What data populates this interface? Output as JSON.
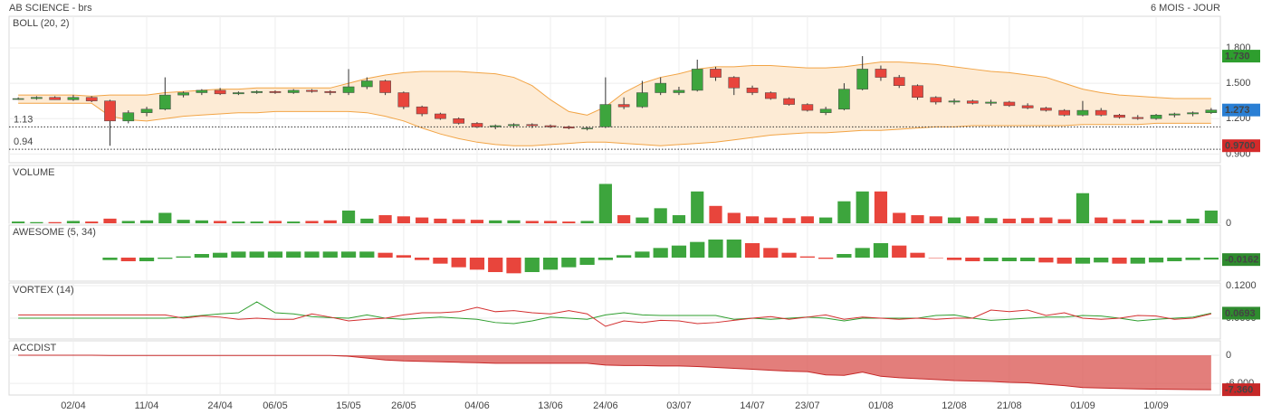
{
  "header": {
    "title": "AB SCIENCE - brs",
    "period": "6 MOIS - JOUR"
  },
  "chart_data": [
    {
      "type": "candlestick",
      "title": "BOLL (20, 2)",
      "title_color": "#f0a040",
      "ylim": [
        0.826,
        2.068
      ],
      "yticks": [
        {
          "value": 0.9,
          "label": "0.900"
        },
        {
          "value": 1.2,
          "label": "1.200"
        },
        {
          "value": 1.5,
          "label": "1.500"
        },
        {
          "value": 1.8,
          "label": "1.800"
        }
      ],
      "grid": true,
      "up_color": "#3da53d",
      "down_color": "#e8453c",
      "band_color": "#f2a445",
      "band_fill": "#fdebd5",
      "ohlc": [
        [
          1.37,
          1.38,
          1.36,
          1.37
        ],
        [
          1.37,
          1.39,
          1.36,
          1.38
        ],
        [
          1.38,
          1.39,
          1.36,
          1.36
        ],
        [
          1.36,
          1.4,
          1.35,
          1.38
        ],
        [
          1.38,
          1.39,
          1.34,
          1.35
        ],
        [
          1.35,
          1.36,
          0.97,
          1.18
        ],
        [
          1.18,
          1.27,
          1.16,
          1.25
        ],
        [
          1.25,
          1.3,
          1.22,
          1.28
        ],
        [
          1.28,
          1.55,
          1.27,
          1.4
        ],
        [
          1.4,
          1.43,
          1.38,
          1.42
        ],
        [
          1.42,
          1.45,
          1.4,
          1.44
        ],
        [
          1.44,
          1.46,
          1.4,
          1.41
        ],
        [
          1.41,
          1.43,
          1.4,
          1.42
        ],
        [
          1.42,
          1.44,
          1.41,
          1.43
        ],
        [
          1.43,
          1.44,
          1.41,
          1.42
        ],
        [
          1.42,
          1.45,
          1.41,
          1.44
        ],
        [
          1.44,
          1.45,
          1.42,
          1.43
        ],
        [
          1.43,
          1.44,
          1.4,
          1.42
        ],
        [
          1.42,
          1.62,
          1.4,
          1.47
        ],
        [
          1.47,
          1.55,
          1.45,
          1.52
        ],
        [
          1.52,
          1.53,
          1.4,
          1.42
        ],
        [
          1.42,
          1.43,
          1.28,
          1.3
        ],
        [
          1.3,
          1.31,
          1.22,
          1.24
        ],
        [
          1.24,
          1.25,
          1.19,
          1.2
        ],
        [
          1.2,
          1.21,
          1.15,
          1.16
        ],
        [
          1.16,
          1.17,
          1.12,
          1.13
        ],
        [
          1.13,
          1.15,
          1.11,
          1.14
        ],
        [
          1.14,
          1.16,
          1.12,
          1.15
        ],
        [
          1.15,
          1.16,
          1.12,
          1.14
        ],
        [
          1.14,
          1.15,
          1.12,
          1.13
        ],
        [
          1.13,
          1.14,
          1.11,
          1.12
        ],
        [
          1.12,
          1.13,
          1.1,
          1.12
        ],
        [
          1.13,
          1.55,
          1.12,
          1.32
        ],
        [
          1.32,
          1.38,
          1.28,
          1.3
        ],
        [
          1.3,
          1.52,
          1.29,
          1.42
        ],
        [
          1.42,
          1.55,
          1.4,
          1.5
        ],
        [
          1.42,
          1.47,
          1.4,
          1.44
        ],
        [
          1.44,
          1.7,
          1.43,
          1.62
        ],
        [
          1.62,
          1.64,
          1.52,
          1.55
        ],
        [
          1.55,
          1.56,
          1.4,
          1.46
        ],
        [
          1.46,
          1.48,
          1.4,
          1.42
        ],
        [
          1.42,
          1.43,
          1.36,
          1.37
        ],
        [
          1.37,
          1.38,
          1.31,
          1.32
        ],
        [
          1.32,
          1.33,
          1.26,
          1.27
        ],
        [
          1.25,
          1.3,
          1.23,
          1.28
        ],
        [
          1.28,
          1.5,
          1.27,
          1.45
        ],
        [
          1.45,
          1.73,
          1.44,
          1.62
        ],
        [
          1.62,
          1.65,
          1.52,
          1.55
        ],
        [
          1.55,
          1.57,
          1.46,
          1.48
        ],
        [
          1.48,
          1.49,
          1.36,
          1.38
        ],
        [
          1.38,
          1.39,
          1.32,
          1.34
        ],
        [
          1.34,
          1.37,
          1.32,
          1.35
        ],
        [
          1.35,
          1.36,
          1.32,
          1.33
        ],
        [
          1.33,
          1.36,
          1.31,
          1.34
        ],
        [
          1.34,
          1.35,
          1.3,
          1.31
        ],
        [
          1.31,
          1.33,
          1.28,
          1.29
        ],
        [
          1.29,
          1.3,
          1.26,
          1.27
        ],
        [
          1.27,
          1.28,
          1.22,
          1.23
        ],
        [
          1.23,
          1.35,
          1.22,
          1.27
        ],
        [
          1.27,
          1.29,
          1.22,
          1.23
        ],
        [
          1.23,
          1.24,
          1.2,
          1.21
        ],
        [
          1.21,
          1.23,
          1.19,
          1.2
        ],
        [
          1.2,
          1.24,
          1.19,
          1.23
        ],
        [
          1.23,
          1.25,
          1.21,
          1.24
        ],
        [
          1.24,
          1.26,
          1.22,
          1.25
        ],
        [
          1.25,
          1.29,
          1.24,
          1.273
        ]
      ],
      "upper": [
        1.4,
        1.4,
        1.4,
        1.4,
        1.39,
        1.4,
        1.4,
        1.4,
        1.42,
        1.43,
        1.44,
        1.45,
        1.45,
        1.46,
        1.46,
        1.46,
        1.46,
        1.46,
        1.5,
        1.54,
        1.57,
        1.59,
        1.6,
        1.6,
        1.6,
        1.59,
        1.58,
        1.55,
        1.48,
        1.36,
        1.26,
        1.23,
        1.3,
        1.42,
        1.5,
        1.55,
        1.58,
        1.62,
        1.64,
        1.64,
        1.65,
        1.65,
        1.64,
        1.63,
        1.63,
        1.64,
        1.66,
        1.68,
        1.68,
        1.67,
        1.66,
        1.64,
        1.62,
        1.6,
        1.59,
        1.57,
        1.55,
        1.5,
        1.45,
        1.42,
        1.4,
        1.39,
        1.38,
        1.37,
        1.37,
        1.37
      ],
      "lower": [
        1.33,
        1.33,
        1.33,
        1.33,
        1.33,
        1.22,
        1.19,
        1.18,
        1.2,
        1.22,
        1.23,
        1.24,
        1.25,
        1.25,
        1.26,
        1.26,
        1.26,
        1.26,
        1.26,
        1.25,
        1.22,
        1.18,
        1.12,
        1.07,
        1.03,
        1.0,
        0.98,
        0.97,
        0.97,
        0.98,
        0.99,
        1.0,
        1.0,
        0.99,
        0.98,
        0.97,
        0.98,
        0.99,
        1.0,
        1.02,
        1.04,
        1.06,
        1.07,
        1.08,
        1.08,
        1.09,
        1.1,
        1.1,
        1.11,
        1.12,
        1.13,
        1.13,
        1.14,
        1.14,
        1.14,
        1.14,
        1.14,
        1.14,
        1.15,
        1.15,
        1.15,
        1.15,
        1.16,
        1.16,
        1.16,
        1.16
      ],
      "levels": [
        1.13,
        0.94
      ],
      "markers": [
        {
          "value": 1.73,
          "label": "1.730",
          "color": "#2e9e2e"
        },
        {
          "value": 1.273,
          "label": "1.273",
          "color": "#2a7fd4"
        },
        {
          "value": 0.97,
          "label": "0.9700",
          "color": "#d42a2a"
        }
      ]
    },
    {
      "type": "volume",
      "title": "VOLUME",
      "title_color": "#3da53d",
      "ylim": [
        0,
        100
      ],
      "yticks": [
        0
      ],
      "values": [
        3,
        2,
        2,
        4,
        3,
        8,
        4,
        5,
        18,
        6,
        5,
        4,
        3,
        3,
        4,
        3,
        4,
        5,
        22,
        8,
        14,
        12,
        10,
        8,
        7,
        6,
        5,
        5,
        4,
        4,
        3,
        4,
        68,
        14,
        10,
        26,
        14,
        55,
        30,
        18,
        12,
        10,
        9,
        12,
        10,
        38,
        55,
        55,
        18,
        14,
        12,
        10,
        12,
        9,
        8,
        9,
        10,
        7,
        52,
        10,
        7,
        6,
        5,
        6,
        8,
        22
      ]
    },
    {
      "type": "oscillator",
      "title": "AWESOME (5, 34)",
      "title_color": "#3a8a3a",
      "ylim": [
        -0.195,
        0.27
      ],
      "marker_color": "#2e8b2e",
      "values": [
        null,
        null,
        null,
        null,
        null,
        -0.02,
        -0.03,
        -0.03,
        -0.01,
        0.01,
        0.03,
        0.04,
        0.05,
        0.05,
        0.05,
        0.05,
        0.05,
        0.05,
        0.05,
        0.05,
        0.04,
        0.02,
        -0.02,
        -0.05,
        -0.08,
        -0.1,
        -0.12,
        -0.13,
        -0.12,
        -0.1,
        -0.08,
        -0.06,
        -0.02,
        0.02,
        0.05,
        0.08,
        0.1,
        0.13,
        0.15,
        0.15,
        0.12,
        0.08,
        0.04,
        0.01,
        -0.01,
        0.03,
        0.08,
        0.12,
        0.1,
        0.04,
        0,
        -0.02,
        -0.03,
        -0.03,
        -0.03,
        -0.03,
        -0.04,
        -0.05,
        -0.05,
        -0.04,
        -0.05,
        -0.05,
        -0.04,
        -0.03,
        -0.02,
        -0.0162
      ]
    },
    {
      "type": "line",
      "title": "VORTEX (14)",
      "title_color": "#2e7d32",
      "ylim": [
        0.0217,
        0.125
      ],
      "yticks": [
        {
          "value": 0.12,
          "label": "0.1200"
        },
        {
          "value": 0.06,
          "label": "0.0600"
        }
      ],
      "marker_color": "#2e8b2e",
      "series": [
        {
          "color": "#2e9e2e",
          "values": [
            0.06,
            0.06,
            0.06,
            0.06,
            0.06,
            0.06,
            0.06,
            0.06,
            0.06,
            0.062,
            0.065,
            0.068,
            0.07,
            0.09,
            0.07,
            0.068,
            0.063,
            0.061,
            0.06,
            0.066,
            0.06,
            0.058,
            0.06,
            0.062,
            0.06,
            0.058,
            0.052,
            0.05,
            0.055,
            0.062,
            0.06,
            0.058,
            0.066,
            0.07,
            0.066,
            0.065,
            0.065,
            0.065,
            0.065,
            0.058,
            0.06,
            0.058,
            0.06,
            0.062,
            0.06,
            0.055,
            0.06,
            0.06,
            0.06,
            0.06,
            0.065,
            0.066,
            0.06,
            0.056,
            0.058,
            0.06,
            0.062,
            0.062,
            0.065,
            0.064,
            0.06,
            0.055,
            0.058,
            0.06,
            0.062,
            0.0693
          ]
        },
        {
          "color": "#d32f2f",
          "values": [
            0.066,
            0.066,
            0.066,
            0.066,
            0.066,
            0.066,
            0.066,
            0.066,
            0.066,
            0.06,
            0.064,
            0.062,
            0.058,
            0.06,
            0.058,
            0.058,
            0.068,
            0.062,
            0.055,
            0.058,
            0.06,
            0.066,
            0.07,
            0.07,
            0.072,
            0.08,
            0.072,
            0.074,
            0.07,
            0.068,
            0.074,
            0.068,
            0.045,
            0.055,
            0.052,
            0.056,
            0.055,
            0.05,
            0.052,
            0.056,
            0.06,
            0.063,
            0.058,
            0.062,
            0.066,
            0.058,
            0.062,
            0.06,
            0.058,
            0.06,
            0.058,
            0.06,
            0.06,
            0.075,
            0.072,
            0.075,
            0.065,
            0.07,
            0.06,
            0.058,
            0.06,
            0.065,
            0.064,
            0.058,
            0.06,
            0.068
          ]
        }
      ]
    },
    {
      "type": "area",
      "title": "ACCDIST",
      "title_color": "#c62828",
      "ylim": [
        -8.5,
        3.1
      ],
      "yticks": [
        0,
        {
          "value": -6,
          "label": "-6.000"
        }
      ],
      "color": "#d9534f",
      "values": [
        0,
        0,
        0,
        0,
        0,
        -0.05,
        -0.05,
        -0.05,
        -0.05,
        -0.05,
        -0.05,
        -0.05,
        -0.05,
        -0.05,
        -0.05,
        -0.05,
        -0.05,
        -0.05,
        -0.2,
        -0.6,
        -1.0,
        -1.2,
        -1.3,
        -1.4,
        -1.5,
        -1.6,
        -1.7,
        -1.7,
        -1.7,
        -1.7,
        -1.7,
        -1.7,
        -2.1,
        -2.2,
        -2.2,
        -2.3,
        -2.3,
        -2.4,
        -2.6,
        -2.8,
        -3.0,
        -3.2,
        -3.4,
        -3.5,
        -4.2,
        -4.3,
        -3.6,
        -4.5,
        -4.8,
        -5.0,
        -5.2,
        -5.4,
        -5.5,
        -5.6,
        -5.8,
        -5.9,
        -6.2,
        -6.5,
        -6.9,
        -7.0,
        -7.1,
        -7.2,
        -7.25,
        -7.3,
        -7.33,
        -7.36
      ],
      "markers": [
        {
          "value": -7.36,
          "label": "-7.360",
          "color": "#c62828"
        }
      ],
      "categories": [
        null,
        null,
        null,
        "02/04",
        null,
        null,
        null,
        "11/04",
        null,
        null,
        null,
        "24/04",
        null,
        null,
        "06/05",
        null,
        null,
        null,
        "15/05",
        null,
        null,
        "26/05",
        null,
        null,
        null,
        "04/06",
        null,
        null,
        null,
        "13/06",
        null,
        null,
        "24/06",
        null,
        null,
        null,
        "03/07",
        null,
        null,
        null,
        "14/07",
        null,
        null,
        "23/07",
        null,
        null,
        null,
        "01/08",
        null,
        null,
        null,
        "12/08",
        null,
        null,
        "21/08",
        null,
        null,
        null,
        "01/09",
        null,
        null,
        null,
        "10/09",
        null,
        null,
        null
      ]
    }
  ]
}
